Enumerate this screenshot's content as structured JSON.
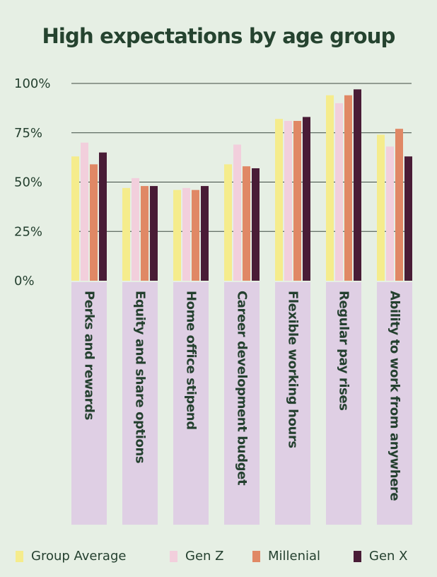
{
  "chart_data": {
    "type": "bar",
    "title": "High expectations by age group",
    "categories": [
      "Perks and rewards",
      "Equity and share options",
      "Home office stipend",
      "Career development budget",
      "Flexible working hours",
      "Regular pay rises",
      "Ability to work from anywhere"
    ],
    "series": [
      {
        "name": "Group Average",
        "color": "#f5ec8c",
        "values": [
          63,
          47,
          46,
          59,
          82,
          94,
          74
        ]
      },
      {
        "name": "Gen Z",
        "color": "#f2cfdc",
        "values": [
          70,
          52,
          47,
          69,
          81,
          90,
          68
        ]
      },
      {
        "name": "Millenial",
        "color": "#e08865",
        "values": [
          59,
          48,
          46,
          58,
          81,
          94,
          77
        ]
      },
      {
        "name": "Gen X",
        "color": "#491c36",
        "values": [
          65,
          48,
          48,
          57,
          83,
          97,
          63
        ]
      }
    ],
    "y_ticks": [
      "0%",
      "25%",
      "50%",
      "75%",
      "100%"
    ],
    "y_tick_values": [
      0,
      25,
      50,
      75,
      100
    ],
    "ylim": [
      0,
      100
    ],
    "grid": true,
    "legend": "bottom",
    "label_band_color": "#dfcfe4",
    "gridline_color": "#3d4a41"
  }
}
